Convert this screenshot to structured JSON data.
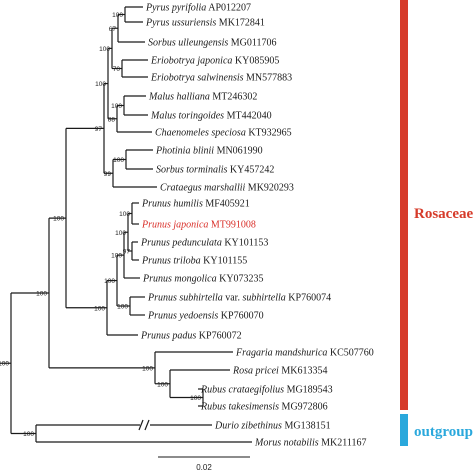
{
  "colors": {
    "rosaceae": "#d63b2a",
    "outgroup": "#2aa8dc",
    "highlight": "#d9302a",
    "line": "#1a1a1a"
  },
  "clades": {
    "rosaceae_label": "Rosaceae",
    "outgroup_label": "outgroup"
  },
  "scale": {
    "label": "0.02",
    "length": 0.02
  },
  "taxa": [
    {
      "species": "Pyrus pyrifolia",
      "accession": "AP012207"
    },
    {
      "species": "Pyrus ussuriensis",
      "accession": "MK172841"
    },
    {
      "species": "Sorbus ulleungensis",
      "accession": "MG011706"
    },
    {
      "species": "Eriobotrya japonica",
      "accession": "KY085905"
    },
    {
      "species": "Eriobotrya salwinensis",
      "accession": "MN577883"
    },
    {
      "species": "Malus halliana",
      "accession": "MT246302"
    },
    {
      "species": "Malus toringoides",
      "accession": "MT442040"
    },
    {
      "species": "Chaenomeles speciosa",
      "accession": "KT932965"
    },
    {
      "species": "Photinia blinii",
      "accession": "MN061990"
    },
    {
      "species": "Sorbus torminalis",
      "accession": "KY457242"
    },
    {
      "species": "Crataegus marshallii",
      "accession": "MK920293"
    },
    {
      "species": "Prunus humilis",
      "accession": "MF405921"
    },
    {
      "species": "Prunus japonica",
      "accession": "MT991008",
      "highlight": true
    },
    {
      "species": "Prunus pedunculata",
      "accession": "KY101153"
    },
    {
      "species": "Prunus triloba",
      "accession": "KY101155"
    },
    {
      "species": "Prunus mongolica",
      "accession": "KY073235"
    },
    {
      "species": "Prunus subhirtella",
      "suffix": "var.",
      "infra": "subhirtella",
      "accession": "KP760074"
    },
    {
      "species": "Prunus yedoensis",
      "accession": "KP760070"
    },
    {
      "species": "Prunus padus",
      "accession": "KP760072"
    },
    {
      "species": "Fragaria mandshurica",
      "accession": "KC507760"
    },
    {
      "species": "Rosa pricei",
      "accession": "MK613354"
    },
    {
      "species": "Rubus crataegifolius",
      "accession": "MG189543"
    },
    {
      "species": "Rubus takesimensis",
      "accession": "MG972806"
    },
    {
      "species": "Durio zibethinus",
      "accession": "MG138151"
    },
    {
      "species": "Morus notabilis",
      "accession": "MK211167"
    }
  ],
  "bootstrap": {
    "n1": "100",
    "n2": "67",
    "n3": "70",
    "n4": "100",
    "n5": "100",
    "n6": "100",
    "n7": "88",
    "n8": "99",
    "n9": "97",
    "n10": "100",
    "n11": "97",
    "n12": "100",
    "n13": "100",
    "n14": "100",
    "n15": "100",
    "n16": "100",
    "n17": "100",
    "n18": "100",
    "n19": "100",
    "n20": "100",
    "n21": "100",
    "n22": "100",
    "n23": "100"
  }
}
